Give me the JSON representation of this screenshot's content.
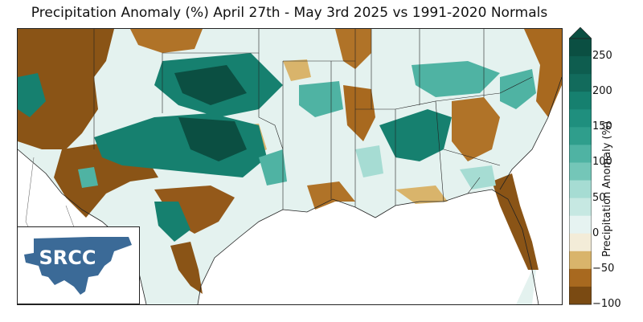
{
  "title": "Precipitation Anomaly (%) April 27th - May 3rd 2025 vs 1991-2020 Normals",
  "logo_text": "SRCC",
  "colorbar": {
    "label": "Precipitation Anomaly (%)",
    "ticks": [
      "250",
      "200",
      "150",
      "100",
      "50",
      "0",
      "−50",
      "−100"
    ],
    "range": [
      -100,
      275
    ],
    "colors": {
      "dry_dark": "#7a4a12",
      "dry_mid": "#a8691f",
      "dry_light": "#d9b46b",
      "neutral": "#f3ecd8",
      "near_normal": "#e6f3f1",
      "wet_light": "#a6dcd3",
      "wet_mid": "#4fb3a3",
      "wet_dark": "#16806f",
      "wet_darkest": "#0b4f42"
    }
  }
}
